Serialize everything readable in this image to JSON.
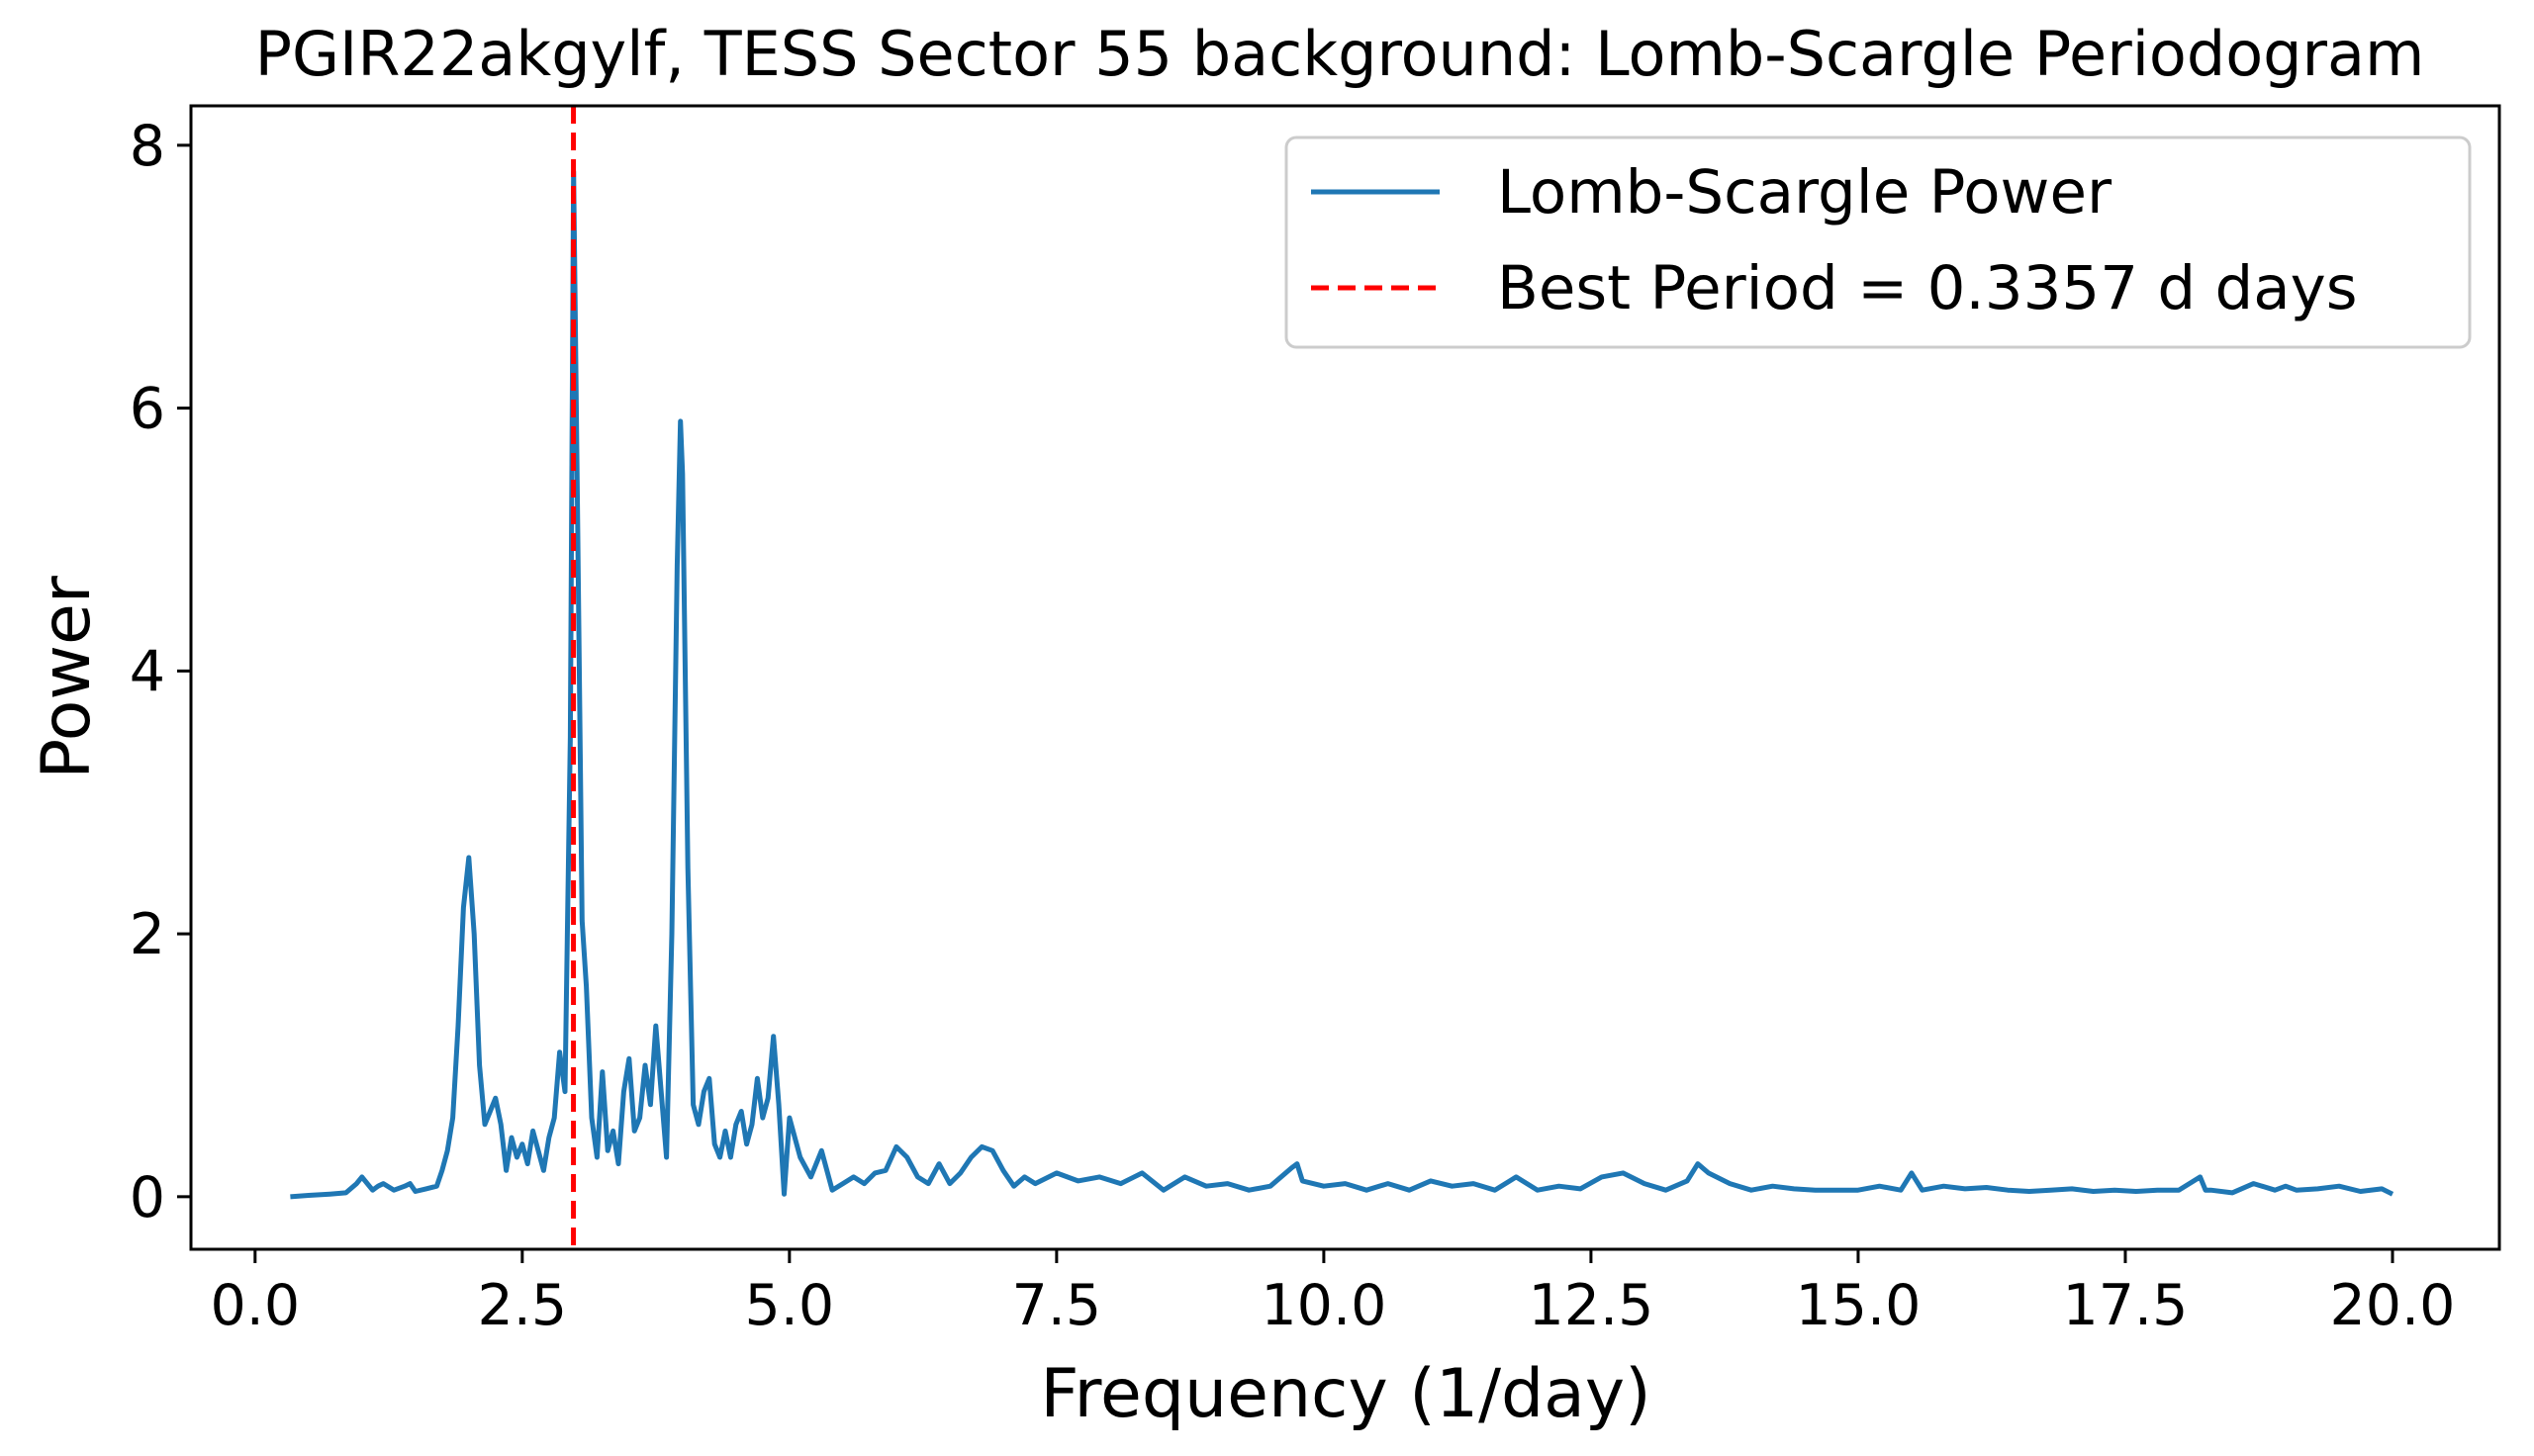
{
  "chart_data": {
    "type": "line",
    "title": "PGIR22akgylf, TESS Sector 55 background: Lomb-Scargle Periodogram",
    "xlabel": "Frequency (1/day)",
    "ylabel": "Power",
    "xlim": [
      -0.6,
      21.0
    ],
    "ylim": [
      -0.4,
      8.3
    ],
    "xticks": [
      0.0,
      2.5,
      5.0,
      7.5,
      10.0,
      12.5,
      15.0,
      17.5,
      20.0
    ],
    "xtick_labels": [
      "0.0",
      "2.5",
      "5.0",
      "7.5",
      "10.0",
      "12.5",
      "15.0",
      "17.5",
      "20.0"
    ],
    "yticks": [
      0,
      2,
      4,
      6,
      8
    ],
    "ytick_labels": [
      "0",
      "2",
      "4",
      "6",
      "8"
    ],
    "grid": false,
    "legend_position": "upper right",
    "series": [
      {
        "name": "Lomb-Scargle Power",
        "color": "#1f77b4",
        "style": "solid",
        "x": [
          0.33,
          0.5,
          0.7,
          0.85,
          0.95,
          1.0,
          1.05,
          1.1,
          1.15,
          1.2,
          1.3,
          1.4,
          1.45,
          1.5,
          1.6,
          1.7,
          1.75,
          1.8,
          1.85,
          1.9,
          1.95,
          2.0,
          2.05,
          2.1,
          2.15,
          2.2,
          2.25,
          2.3,
          2.35,
          2.4,
          2.45,
          2.5,
          2.55,
          2.6,
          2.65,
          2.7,
          2.75,
          2.8,
          2.85,
          2.9,
          2.95,
          2.98,
          3.02,
          3.06,
          3.1,
          3.15,
          3.2,
          3.25,
          3.3,
          3.35,
          3.4,
          3.45,
          3.5,
          3.55,
          3.6,
          3.65,
          3.7,
          3.75,
          3.8,
          3.85,
          3.9,
          3.95,
          3.98,
          4.0,
          4.05,
          4.1,
          4.15,
          4.2,
          4.25,
          4.3,
          4.35,
          4.4,
          4.45,
          4.5,
          4.55,
          4.6,
          4.65,
          4.7,
          4.75,
          4.8,
          4.85,
          4.9,
          4.95,
          5.0,
          5.1,
          5.2,
          5.3,
          5.4,
          5.5,
          5.6,
          5.7,
          5.8,
          5.9,
          6.0,
          6.1,
          6.2,
          6.3,
          6.4,
          6.5,
          6.6,
          6.7,
          6.8,
          6.9,
          7.0,
          7.1,
          7.2,
          7.3,
          7.5,
          7.7,
          7.9,
          8.1,
          8.3,
          8.5,
          8.7,
          8.9,
          9.1,
          9.3,
          9.5,
          9.7,
          9.75,
          9.8,
          10.0,
          10.2,
          10.4,
          10.6,
          10.8,
          11.0,
          11.2,
          11.4,
          11.6,
          11.8,
          12.0,
          12.2,
          12.4,
          12.6,
          12.8,
          13.0,
          13.2,
          13.4,
          13.5,
          13.6,
          13.8,
          14.0,
          14.2,
          14.4,
          14.6,
          14.8,
          15.0,
          15.2,
          15.4,
          15.5,
          15.6,
          15.8,
          16.0,
          16.2,
          16.4,
          16.6,
          16.8,
          17.0,
          17.2,
          17.4,
          17.6,
          17.8,
          18.0,
          18.2,
          18.25,
          18.3,
          18.5,
          18.7,
          18.9,
          19.0,
          19.1,
          19.3,
          19.5,
          19.7,
          19.9,
          20.0
        ],
        "y": [
          0.0,
          0.01,
          0.02,
          0.03,
          0.1,
          0.15,
          0.1,
          0.05,
          0.08,
          0.1,
          0.05,
          0.08,
          0.1,
          0.04,
          0.06,
          0.08,
          0.2,
          0.35,
          0.6,
          1.3,
          2.2,
          2.58,
          2.0,
          1.0,
          0.55,
          0.65,
          0.75,
          0.55,
          0.2,
          0.45,
          0.3,
          0.4,
          0.25,
          0.5,
          0.35,
          0.2,
          0.45,
          0.6,
          1.1,
          0.8,
          3.5,
          7.8,
          5.0,
          2.1,
          1.6,
          0.6,
          0.3,
          0.95,
          0.35,
          0.5,
          0.25,
          0.8,
          1.05,
          0.5,
          0.6,
          1.0,
          0.7,
          1.3,
          0.8,
          0.3,
          2.0,
          4.8,
          5.9,
          5.5,
          2.5,
          0.7,
          0.55,
          0.8,
          0.9,
          0.4,
          0.3,
          0.5,
          0.3,
          0.55,
          0.65,
          0.4,
          0.55,
          0.9,
          0.6,
          0.75,
          1.22,
          0.7,
          0.02,
          0.6,
          0.3,
          0.15,
          0.35,
          0.05,
          0.1,
          0.15,
          0.1,
          0.18,
          0.2,
          0.38,
          0.3,
          0.15,
          0.1,
          0.25,
          0.1,
          0.18,
          0.3,
          0.38,
          0.35,
          0.2,
          0.08,
          0.15,
          0.1,
          0.18,
          0.12,
          0.15,
          0.1,
          0.18,
          0.05,
          0.15,
          0.08,
          0.1,
          0.05,
          0.08,
          0.22,
          0.25,
          0.12,
          0.08,
          0.1,
          0.05,
          0.1,
          0.05,
          0.12,
          0.08,
          0.1,
          0.05,
          0.15,
          0.05,
          0.08,
          0.06,
          0.15,
          0.18,
          0.1,
          0.05,
          0.12,
          0.25,
          0.18,
          0.1,
          0.05,
          0.08,
          0.06,
          0.05,
          0.05,
          0.05,
          0.08,
          0.05,
          0.18,
          0.05,
          0.08,
          0.06,
          0.07,
          0.05,
          0.04,
          0.05,
          0.06,
          0.04,
          0.05,
          0.04,
          0.05,
          0.05,
          0.15,
          0.05,
          0.05,
          0.03,
          0.1,
          0.05,
          0.08,
          0.05,
          0.06,
          0.08,
          0.04,
          0.06,
          0.02
        ]
      },
      {
        "name": "Best Period = 0.3357 d days",
        "color": "#ff0000",
        "style": "dashed",
        "vline_x": 2.979
      }
    ]
  }
}
